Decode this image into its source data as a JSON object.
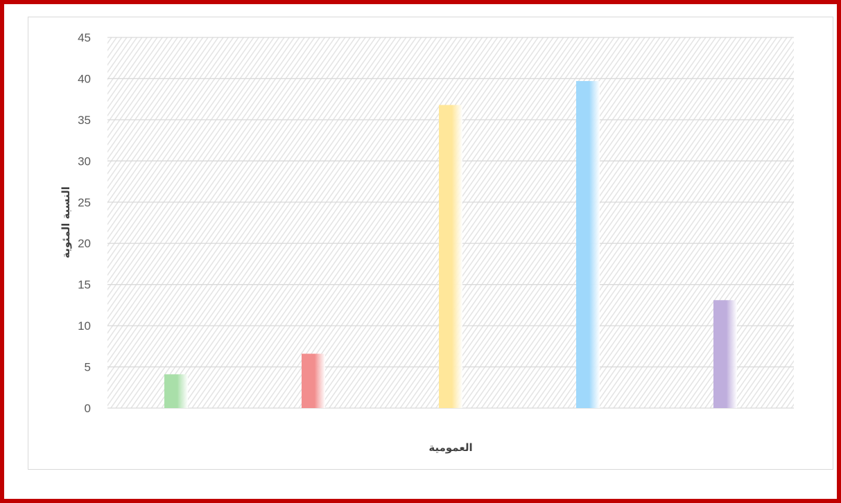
{
  "chart_data": {
    "type": "bar",
    "title": "",
    "xlabel": "العمومية",
    "ylabel": "النسبة المئوية",
    "ylim": [
      0,
      45
    ],
    "yticks": [
      0,
      5,
      10,
      15,
      20,
      25,
      30,
      35,
      40,
      45
    ],
    "grid": true,
    "legend": "none",
    "categories": [
      "",
      "",
      "",
      "",
      ""
    ],
    "values": [
      4.1,
      6.6,
      36.8,
      39.7,
      13.1
    ],
    "colors": [
      "#a9dfa9",
      "#f28e8e",
      "#ffe79a",
      "#9fd8fb",
      "#bfaedd"
    ]
  },
  "colors": {
    "border": "#c00000",
    "grid": "#d9d9d9",
    "plot_hatch": "#e6e6e6"
  }
}
